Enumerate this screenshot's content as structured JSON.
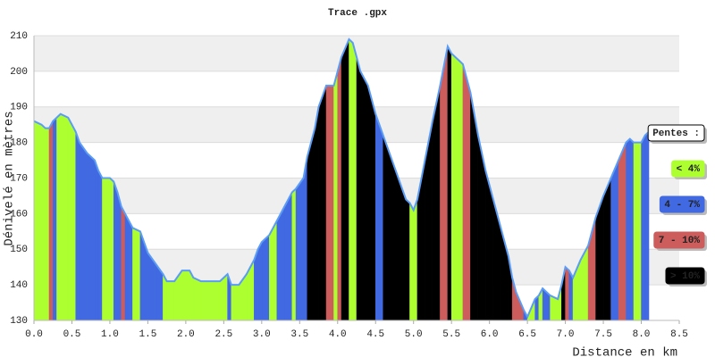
{
  "chart_data": {
    "type": "slope-profile",
    "title": "Trace .gpx",
    "x_label": "Distance en km",
    "y_label": "Dénivelé en mètres",
    "xlim": [
      0,
      8.5
    ],
    "xticks": [
      {
        "value": 0,
        "label": "0.0"
      },
      0.5,
      {
        "value": 1,
        "label": "1.0"
      },
      1.5,
      {
        "value": 2,
        "label": "2.0"
      },
      2.5,
      {
        "value": 3,
        "label": "3.0"
      },
      3.5,
      {
        "value": 4,
        "label": "4.0"
      },
      4.5,
      {
        "value": 5,
        "label": "5.0"
      },
      5.5,
      {
        "value": 6,
        "label": "6.0"
      },
      6.5,
      {
        "value": 7,
        "label": "7.0"
      },
      7.5,
      {
        "value": 8,
        "label": "8.0"
      },
      8.5
    ],
    "ylim": [
      130,
      210
    ],
    "yticks": [
      130,
      140,
      150,
      160,
      170,
      180,
      190,
      200,
      210
    ],
    "grid": true,
    "line_color": "#5b9cf5",
    "x": [
      0,
      0.1,
      0.15,
      0.2,
      0.25,
      0.3,
      0.35,
      0.45,
      0.5,
      0.55,
      0.6,
      0.7,
      0.8,
      0.85,
      0.9,
      1.0,
      1.05,
      1.1,
      1.15,
      1.2,
      1.25,
      1.3,
      1.4,
      1.45,
      1.5,
      1.6,
      1.7,
      1.75,
      1.85,
      1.95,
      2.05,
      2.1,
      2.2,
      2.35,
      2.45,
      2.55,
      2.6,
      2.7,
      2.8,
      2.9,
      2.95,
      3.0,
      3.1,
      3.2,
      3.3,
      3.4,
      3.45,
      3.55,
      3.6,
      3.7,
      3.75,
      3.85,
      3.95,
      4.0,
      4.05,
      4.15,
      4.2,
      4.25,
      4.3,
      4.4,
      4.5,
      4.6,
      4.7,
      4.8,
      4.9,
      4.95,
      5.0,
      5.05,
      5.15,
      5.25,
      5.35,
      5.45,
      5.5,
      5.6,
      5.65,
      5.75,
      5.85,
      5.95,
      6.05,
      6.15,
      6.25,
      6.3,
      6.35,
      6.45,
      6.5,
      6.6,
      6.65,
      6.7,
      6.8,
      6.9,
      6.95,
      7.0,
      7.05,
      7.1,
      7.2,
      7.3,
      7.4,
      7.5,
      7.6,
      7.7,
      7.8,
      7.85,
      7.9,
      8.0,
      8.05,
      8.1
    ],
    "values": [
      186,
      185,
      184,
      184,
      186,
      187,
      188,
      187,
      185,
      183,
      180,
      177,
      175,
      172,
      170,
      170,
      169,
      166,
      162,
      160,
      158,
      156,
      155,
      152,
      149,
      146,
      143,
      141,
      141,
      144,
      144,
      142,
      141,
      141,
      141,
      143,
      140,
      140,
      143,
      147,
      150,
      152,
      154,
      158,
      162,
      166,
      167,
      170,
      176,
      184,
      190,
      196,
      196,
      200,
      204,
      209,
      208,
      204,
      200,
      196,
      188,
      182,
      176,
      170,
      164,
      163,
      161,
      164,
      175,
      186,
      196,
      207,
      205,
      203,
      202,
      194,
      182,
      172,
      164,
      156,
      148,
      142,
      138,
      133,
      131,
      136,
      137,
      139,
      137,
      136,
      140,
      145,
      144,
      142,
      147,
      151,
      159,
      165,
      170,
      175,
      180,
      181,
      180,
      180,
      182,
      183
    ],
    "slope_classes": [
      0,
      0,
      0,
      2,
      1,
      0,
      0,
      0,
      0,
      1,
      1,
      1,
      1,
      1,
      0,
      0,
      1,
      1,
      2,
      1,
      1,
      0,
      1,
      1,
      1,
      1,
      0,
      0,
      0,
      0,
      0,
      0,
      0,
      0,
      0,
      1,
      0,
      0,
      0,
      1,
      1,
      1,
      0,
      1,
      1,
      0,
      1,
      1,
      3,
      3,
      3,
      2,
      0,
      2,
      3,
      0,
      0,
      3,
      3,
      3,
      1,
      3,
      3,
      3,
      3,
      0,
      0,
      3,
      3,
      3,
      2,
      3,
      0,
      0,
      2,
      3,
      3,
      3,
      3,
      3,
      3,
      2,
      2,
      1,
      0,
      1,
      0,
      1,
      0,
      0,
      3,
      2,
      1,
      0,
      0,
      2,
      3,
      3,
      1,
      2,
      1,
      1,
      0,
      1,
      1
    ],
    "legend": {
      "title": "Pentes :",
      "corner": "right",
      "items": [
        {
          "name": "< 4%",
          "color": "#adff2f"
        },
        {
          "name": "4 - 7%",
          "color": "#4169e1"
        },
        {
          "name": "7 - 10%",
          "color": "#cd5c5c"
        },
        {
          "name": "> 10%",
          "color": "#000000"
        }
      ]
    }
  }
}
